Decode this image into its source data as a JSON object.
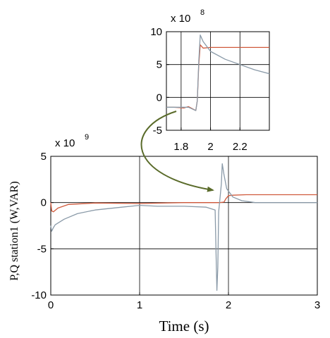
{
  "chart_data": [
    {
      "type": "line",
      "title": "",
      "xlabel": "Time (s)",
      "ylabel": "P,Q  station1 (W,VAR)",
      "xlim": [
        0,
        3
      ],
      "ylim": [
        -10,
        5
      ],
      "x_ticks": [
        "0",
        "1",
        "2",
        "3"
      ],
      "y_ticks": [
        "5",
        "0",
        "-5",
        "-10"
      ],
      "y_multiplier": "x 10",
      "y_exponent": "9",
      "grid": true,
      "legend": "none",
      "series": [
        {
          "color": "#d05a3c",
          "points": [
            [
              0,
              0
            ],
            [
              0.01,
              -0.9
            ],
            [
              0.03,
              -1.0
            ],
            [
              0.08,
              -0.6
            ],
            [
              0.2,
              -0.2
            ],
            [
              0.5,
              -0.05
            ],
            [
              1.0,
              -0.1
            ],
            [
              1.5,
              0
            ],
            [
              1.9,
              0
            ],
            [
              1.95,
              0.05
            ],
            [
              1.97,
              0.4
            ],
            [
              2.0,
              0.75
            ],
            [
              2.05,
              0.8
            ],
            [
              2.2,
              0.85
            ],
            [
              3.0,
              0.85
            ]
          ]
        },
        {
          "color": "#8a9aa8",
          "points": [
            [
              0,
              -2.5
            ],
            [
              0.01,
              -3.1
            ],
            [
              0.03,
              -2.7
            ],
            [
              0.05,
              -2.4
            ],
            [
              0.15,
              -1.8
            ],
            [
              0.3,
              -1.2
            ],
            [
              0.5,
              -0.8
            ],
            [
              0.8,
              -0.5
            ],
            [
              1.0,
              -0.3
            ],
            [
              1.2,
              -0.4
            ],
            [
              1.5,
              -0.4
            ],
            [
              1.75,
              -0.5
            ],
            [
              1.85,
              -0.8
            ],
            [
              1.86,
              -5.5
            ],
            [
              1.87,
              -9.5
            ],
            [
              1.88,
              -7.0
            ],
            [
              1.89,
              -1.0
            ],
            [
              1.9,
              0
            ],
            [
              1.92,
              2.0
            ],
            [
              1.93,
              4.2
            ],
            [
              1.95,
              3.0
            ],
            [
              1.98,
              1.5
            ],
            [
              2.05,
              0.6
            ],
            [
              2.15,
              0.2
            ],
            [
              2.3,
              0
            ],
            [
              3.0,
              0
            ]
          ]
        }
      ]
    },
    {
      "type": "line",
      "title": "",
      "xlabel": "",
      "ylabel": "",
      "xlim": [
        1.7,
        2.4
      ],
      "ylim": [
        -5,
        10
      ],
      "x_ticks": [
        "1.8",
        "2",
        "2.2"
      ],
      "y_ticks": [
        "10",
        "5",
        "0",
        "-5"
      ],
      "y_multiplier": "x 10",
      "y_exponent": "8",
      "grid": true,
      "legend": "none",
      "series": [
        {
          "color": "#d05a3c",
          "points": [
            [
              1.7,
              -1.5
            ],
            [
              1.75,
              -1.5
            ],
            [
              1.82,
              -1.6
            ],
            [
              1.85,
              -1.4
            ],
            [
              1.9,
              -2.0
            ],
            [
              1.91,
              -0.5
            ],
            [
              1.92,
              5.0
            ],
            [
              1.93,
              8.0
            ],
            [
              1.95,
              7.5
            ],
            [
              2.0,
              7.6
            ],
            [
              2.1,
              7.6
            ],
            [
              2.2,
              7.6
            ],
            [
              2.3,
              7.6
            ],
            [
              2.4,
              7.6
            ]
          ]
        },
        {
          "color": "#8a9aa8",
          "points": [
            [
              1.7,
              -1.5
            ],
            [
              1.85,
              -1.5
            ],
            [
              1.9,
              -2.0
            ],
            [
              1.91,
              -0.5
            ],
            [
              1.92,
              5.5
            ],
            [
              1.93,
              9.5
            ],
            [
              1.95,
              8.5
            ],
            [
              2.0,
              7.0
            ],
            [
              2.1,
              5.8
            ],
            [
              2.2,
              5.0
            ],
            [
              2.3,
              4.2
            ],
            [
              2.4,
              3.6
            ]
          ]
        }
      ]
    }
  ]
}
